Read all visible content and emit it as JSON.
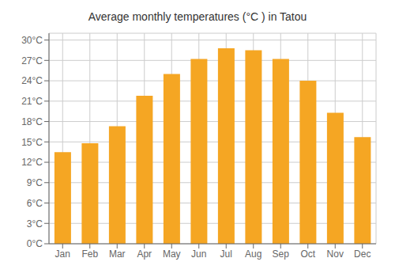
{
  "chart_data": {
    "type": "bar",
    "title": "Average monthly temperatures (°C ) in Tatou",
    "categories": [
      "Jan",
      "Feb",
      "Mar",
      "Apr",
      "May",
      "Jun",
      "Jul",
      "Aug",
      "Sep",
      "Oct",
      "Nov",
      "Dec"
    ],
    "values": [
      13.5,
      14.8,
      17.3,
      21.8,
      25.0,
      27.2,
      28.8,
      28.5,
      27.2,
      24.0,
      19.3,
      15.7
    ],
    "color": "#F5A623",
    "ylim": [
      0,
      31
    ],
    "yticks": [
      {
        "value": 0,
        "label": "0°C"
      },
      {
        "value": 3,
        "label": "3°C"
      },
      {
        "value": 6,
        "label": "6°C"
      },
      {
        "value": 9,
        "label": "9°C"
      },
      {
        "value": 12,
        "label": "12°C"
      },
      {
        "value": 15,
        "label": "15°C"
      },
      {
        "value": 18,
        "label": "18°C"
      },
      {
        "value": 21,
        "label": "21°C"
      },
      {
        "value": 24,
        "label": "24°C"
      },
      {
        "value": 27,
        "label": "27°C"
      },
      {
        "value": 30,
        "label": "30°C"
      }
    ],
    "grid": true
  }
}
